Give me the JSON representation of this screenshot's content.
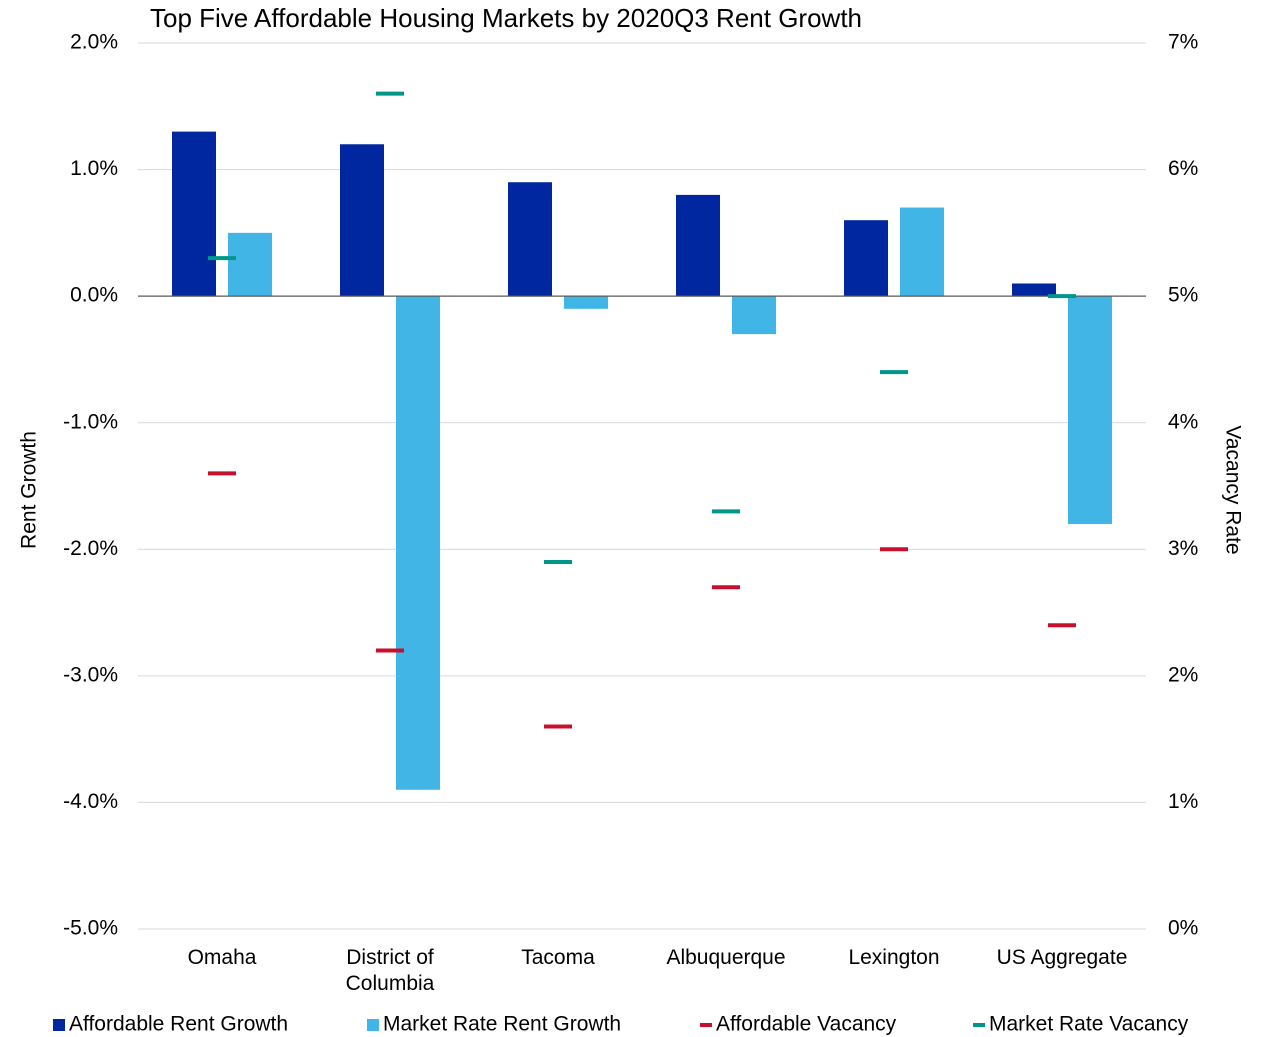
{
  "chart_data": {
    "type": "bar",
    "title": "Top Five Affordable Housing Markets by 2020Q3 Rent Growth",
    "y_label": "Rent Growth",
    "y2_label": "Vacancy Rate",
    "categories": [
      "Omaha",
      "District of Columbia",
      "Tacoma",
      "Albuquerque",
      "Lexington",
      "US Aggregate"
    ],
    "series": [
      {
        "name": "Affordable Rent Growth",
        "color": "#0027a0",
        "values": [
          1.3,
          1.2,
          0.9,
          0.8,
          0.6,
          0.1
        ]
      },
      {
        "name": "Market Rate Rent Growth",
        "color": "#41b6e6",
        "values": [
          0.5,
          -3.9,
          -0.1,
          -0.3,
          0.7,
          -1.8
        ]
      },
      {
        "name": "Affordable Vacancy",
        "color": "#c8102e",
        "axis": "y2",
        "marker": "dash",
        "values": [
          3.6,
          2.2,
          1.6,
          2.7,
          3.0,
          2.4
        ]
      },
      {
        "name": "Market Rate Vacancy",
        "color": "#00968a",
        "axis": "y2",
        "marker": "dash",
        "values": [
          5.3,
          6.6,
          2.9,
          3.3,
          4.4,
          5.0
        ]
      }
    ],
    "ylim": [
      -5,
      2
    ],
    "yticks": [
      {
        "value": 2,
        "label": "2.0%"
      },
      {
        "value": 1,
        "label": "1.0%"
      },
      {
        "value": 0,
        "label": "0.0%"
      },
      {
        "value": -1,
        "label": "-1.0%"
      },
      {
        "value": -2,
        "label": "-2.0%"
      },
      {
        "value": -3,
        "label": "-3.0%"
      },
      {
        "value": -4,
        "label": "-4.0%"
      },
      {
        "value": -5,
        "label": "-5.0%"
      }
    ],
    "y2lim": [
      0,
      7
    ],
    "y2ticks": [
      {
        "value": 7,
        "label": "7%"
      },
      {
        "value": 6,
        "label": "6%"
      },
      {
        "value": 5,
        "label": "5%"
      },
      {
        "value": 4,
        "label": "4%"
      },
      {
        "value": 3,
        "label": "3%"
      },
      {
        "value": 2,
        "label": "2%"
      },
      {
        "value": 1,
        "label": "1%"
      },
      {
        "value": 0,
        "label": "0%"
      }
    ],
    "grid": true,
    "legend": "bottom"
  }
}
